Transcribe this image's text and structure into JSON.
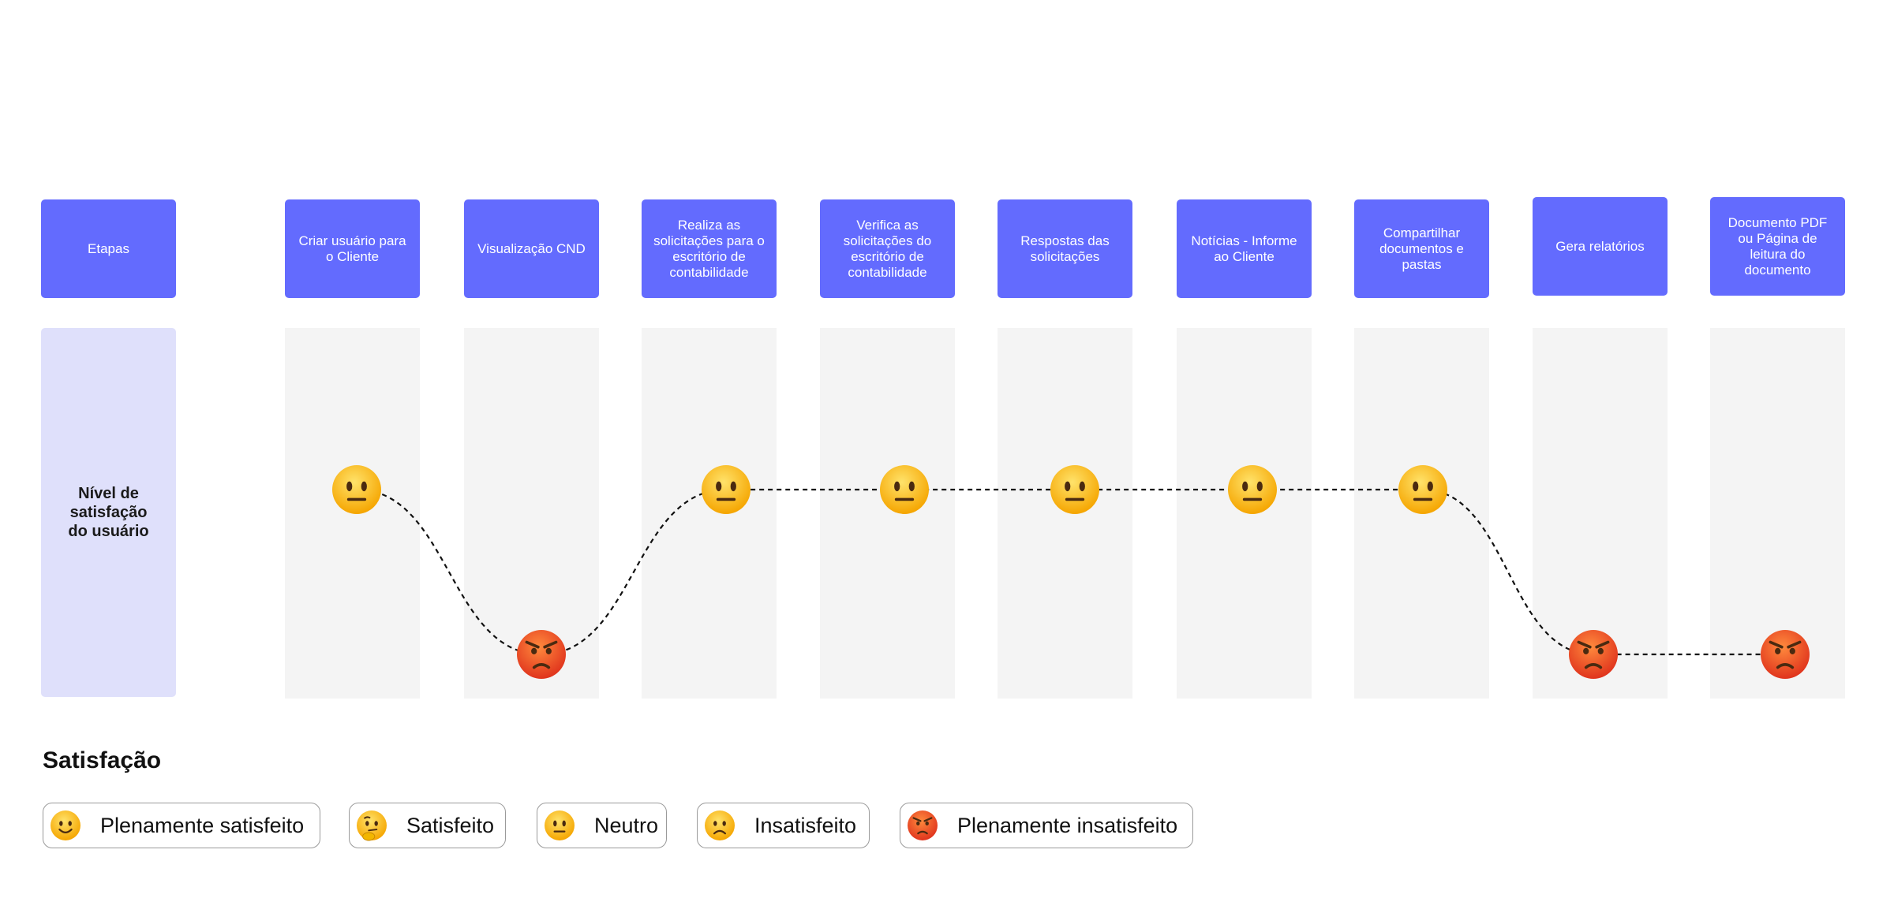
{
  "stages_header": "Etapas",
  "satisfaction_row_label": "Nível de satisfação do usuário",
  "stages": [
    "Criar usuário para o Cliente",
    "Visualização CND",
    "Realiza as solicitações para o escritório de contabilidade",
    "Verifica as solicitações do escritório de contabilidade",
    "Respostas das solicitações",
    "Notícias - Informe ao Cliente",
    "Compartilhar documentos e pastas",
    "Gera relatórios",
    "Documento PDF ou Página de leitura do documento"
  ],
  "legend": {
    "title": "Satisfação",
    "items": [
      "Plenamente satisfeito",
      "Satisfeito",
      "Neutro",
      "Insatisfeito",
      "Plenamente insatisfeito"
    ]
  }
}
